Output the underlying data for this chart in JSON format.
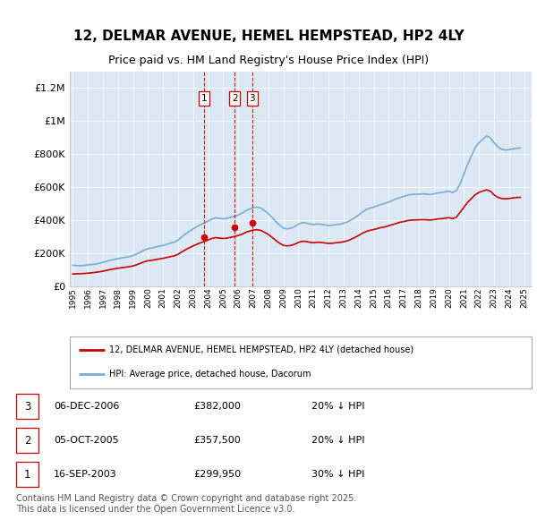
{
  "title": "12, DELMAR AVENUE, HEMEL HEMPSTEAD, HP2 4LY",
  "subtitle": "Price paid vs. HM Land Registry's House Price Index (HPI)",
  "title_fontsize": 11,
  "subtitle_fontsize": 9,
  "plot_bg_color": "#dce9f5",
  "ylim": [
    0,
    1300000
  ],
  "yticks": [
    0,
    200000,
    400000,
    600000,
    800000,
    1000000,
    1200000
  ],
  "ytick_labels": [
    "£0",
    "£200K",
    "£400K",
    "£600K",
    "£800K",
    "£1M",
    "£1.2M"
  ],
  "xlim_start": 1994.8,
  "xlim_end": 2025.5,
  "hpi_color": "#7aadd4",
  "price_color": "#cc0000",
  "transaction_marker_color": "#cc0000",
  "transactions": [
    {
      "label": "1",
      "date": "16-SEP-2003",
      "year": 2003.71,
      "price": 299950,
      "pct": "30% ↓ HPI"
    },
    {
      "label": "2",
      "date": "05-OCT-2005",
      "year": 2005.76,
      "price": 357500,
      "pct": "20% ↓ HPI"
    },
    {
      "label": "3",
      "date": "06-DEC-2006",
      "year": 2006.93,
      "price": 382000,
      "pct": "20% ↓ HPI"
    }
  ],
  "legend_price_label": "12, DELMAR AVENUE, HEMEL HEMPSTEAD, HP2 4LY (detached house)",
  "legend_hpi_label": "HPI: Average price, detached house, Dacorum",
  "footnote": "Contains HM Land Registry data © Crown copyright and database right 2025.\nThis data is licensed under the Open Government Licence v3.0.",
  "hpi_data_x": [
    1995.0,
    1995.25,
    1995.5,
    1995.75,
    1996.0,
    1996.25,
    1996.5,
    1996.75,
    1997.0,
    1997.25,
    1997.5,
    1997.75,
    1998.0,
    1998.25,
    1998.5,
    1998.75,
    1999.0,
    1999.25,
    1999.5,
    1999.75,
    2000.0,
    2000.25,
    2000.5,
    2000.75,
    2001.0,
    2001.25,
    2001.5,
    2001.75,
    2002.0,
    2002.25,
    2002.5,
    2002.75,
    2003.0,
    2003.25,
    2003.5,
    2003.75,
    2004.0,
    2004.25,
    2004.5,
    2004.75,
    2005.0,
    2005.25,
    2005.5,
    2005.75,
    2006.0,
    2006.25,
    2006.5,
    2006.75,
    2007.0,
    2007.25,
    2007.5,
    2007.75,
    2008.0,
    2008.25,
    2008.5,
    2008.75,
    2009.0,
    2009.25,
    2009.5,
    2009.75,
    2010.0,
    2010.25,
    2010.5,
    2010.75,
    2011.0,
    2011.25,
    2011.5,
    2011.75,
    2012.0,
    2012.25,
    2012.5,
    2012.75,
    2013.0,
    2013.25,
    2013.5,
    2013.75,
    2014.0,
    2014.25,
    2014.5,
    2014.75,
    2015.0,
    2015.25,
    2015.5,
    2015.75,
    2016.0,
    2016.25,
    2016.5,
    2016.75,
    2017.0,
    2017.25,
    2017.5,
    2017.75,
    2018.0,
    2018.25,
    2018.5,
    2018.75,
    2019.0,
    2019.25,
    2019.5,
    2019.75,
    2020.0,
    2020.25,
    2020.5,
    2020.75,
    2021.0,
    2021.25,
    2021.5,
    2021.75,
    2022.0,
    2022.25,
    2022.5,
    2022.75,
    2023.0,
    2023.25,
    2023.5,
    2023.75,
    2024.0,
    2024.25,
    2024.5,
    2024.75
  ],
  "hpi_data_y": [
    128000,
    126000,
    125000,
    127000,
    130000,
    132000,
    135000,
    140000,
    145000,
    152000,
    158000,
    163000,
    168000,
    172000,
    176000,
    180000,
    186000,
    196000,
    208000,
    220000,
    228000,
    232000,
    238000,
    244000,
    248000,
    255000,
    262000,
    268000,
    280000,
    300000,
    318000,
    334000,
    348000,
    362000,
    374000,
    384000,
    396000,
    408000,
    415000,
    412000,
    408000,
    412000,
    418000,
    424000,
    432000,
    444000,
    458000,
    468000,
    476000,
    480000,
    474000,
    458000,
    440000,
    418000,
    392000,
    370000,
    352000,
    348000,
    352000,
    362000,
    376000,
    385000,
    384000,
    378000,
    374000,
    378000,
    376000,
    372000,
    368000,
    370000,
    374000,
    376000,
    382000,
    390000,
    402000,
    416000,
    432000,
    450000,
    464000,
    474000,
    480000,
    488000,
    496000,
    502000,
    510000,
    520000,
    530000,
    538000,
    544000,
    552000,
    556000,
    558000,
    558000,
    560000,
    558000,
    556000,
    560000,
    565000,
    568000,
    572000,
    576000,
    568000,
    580000,
    620000,
    680000,
    740000,
    790000,
    840000,
    870000,
    890000,
    910000,
    900000,
    870000,
    845000,
    830000,
    825000,
    828000,
    832000,
    836000,
    838000
  ],
  "price_data_x": [
    1995.0,
    1995.25,
    1995.5,
    1995.75,
    1996.0,
    1996.25,
    1996.5,
    1996.75,
    1997.0,
    1997.25,
    1997.5,
    1997.75,
    1998.0,
    1998.25,
    1998.5,
    1998.75,
    1999.0,
    1999.25,
    1999.5,
    1999.75,
    2000.0,
    2000.25,
    2000.5,
    2000.75,
    2001.0,
    2001.25,
    2001.5,
    2001.75,
    2002.0,
    2002.25,
    2002.5,
    2002.75,
    2003.0,
    2003.25,
    2003.5,
    2003.75,
    2004.0,
    2004.25,
    2004.5,
    2004.75,
    2005.0,
    2005.25,
    2005.5,
    2005.75,
    2006.0,
    2006.25,
    2006.5,
    2006.75,
    2007.0,
    2007.25,
    2007.5,
    2007.75,
    2008.0,
    2008.25,
    2008.5,
    2008.75,
    2009.0,
    2009.25,
    2009.5,
    2009.75,
    2010.0,
    2010.25,
    2010.5,
    2010.75,
    2011.0,
    2011.25,
    2011.5,
    2011.75,
    2012.0,
    2012.25,
    2012.5,
    2012.75,
    2013.0,
    2013.25,
    2013.5,
    2013.75,
    2014.0,
    2014.25,
    2014.5,
    2014.75,
    2015.0,
    2015.25,
    2015.5,
    2015.75,
    2016.0,
    2016.25,
    2016.5,
    2016.75,
    2017.0,
    2017.25,
    2017.5,
    2017.75,
    2018.0,
    2018.25,
    2018.5,
    2018.75,
    2019.0,
    2019.25,
    2019.5,
    2019.75,
    2020.0,
    2020.25,
    2020.5,
    2020.75,
    2021.0,
    2021.25,
    2021.5,
    2021.75,
    2022.0,
    2022.25,
    2022.5,
    2022.75,
    2023.0,
    2023.25,
    2023.5,
    2023.75,
    2024.0,
    2024.25,
    2024.5,
    2024.75
  ],
  "price_data_y": [
    75000,
    76000,
    77000,
    78000,
    80000,
    82000,
    85000,
    88000,
    92000,
    97000,
    102000,
    106000,
    110000,
    113000,
    116000,
    119000,
    124000,
    131000,
    140000,
    149000,
    155000,
    158000,
    162000,
    166000,
    170000,
    175000,
    180000,
    185000,
    194000,
    209000,
    222000,
    234000,
    245000,
    255000,
    264000,
    272000,
    281000,
    290000,
    295000,
    292000,
    290000,
    292000,
    297000,
    302000,
    308000,
    316000,
    327000,
    335000,
    341000,
    343000,
    339000,
    327000,
    314000,
    297000,
    278000,
    261000,
    248000,
    245000,
    248000,
    255000,
    266000,
    273000,
    272000,
    267000,
    264000,
    267000,
    266000,
    263000,
    260000,
    261000,
    264000,
    266000,
    270000,
    276000,
    285000,
    296000,
    308000,
    322000,
    332000,
    339000,
    344000,
    350000,
    356000,
    360000,
    367000,
    374000,
    381000,
    388000,
    392000,
    398000,
    401000,
    402000,
    403000,
    404000,
    403000,
    401000,
    404000,
    408000,
    410000,
    413000,
    416000,
    410000,
    419000,
    449000,
    479000,
    509000,
    532000,
    554000,
    569000,
    577000,
    584000,
    577000,
    554000,
    539000,
    532000,
    530000,
    532000,
    535000,
    538000,
    539000
  ],
  "footnote_fontsize": 7.0
}
